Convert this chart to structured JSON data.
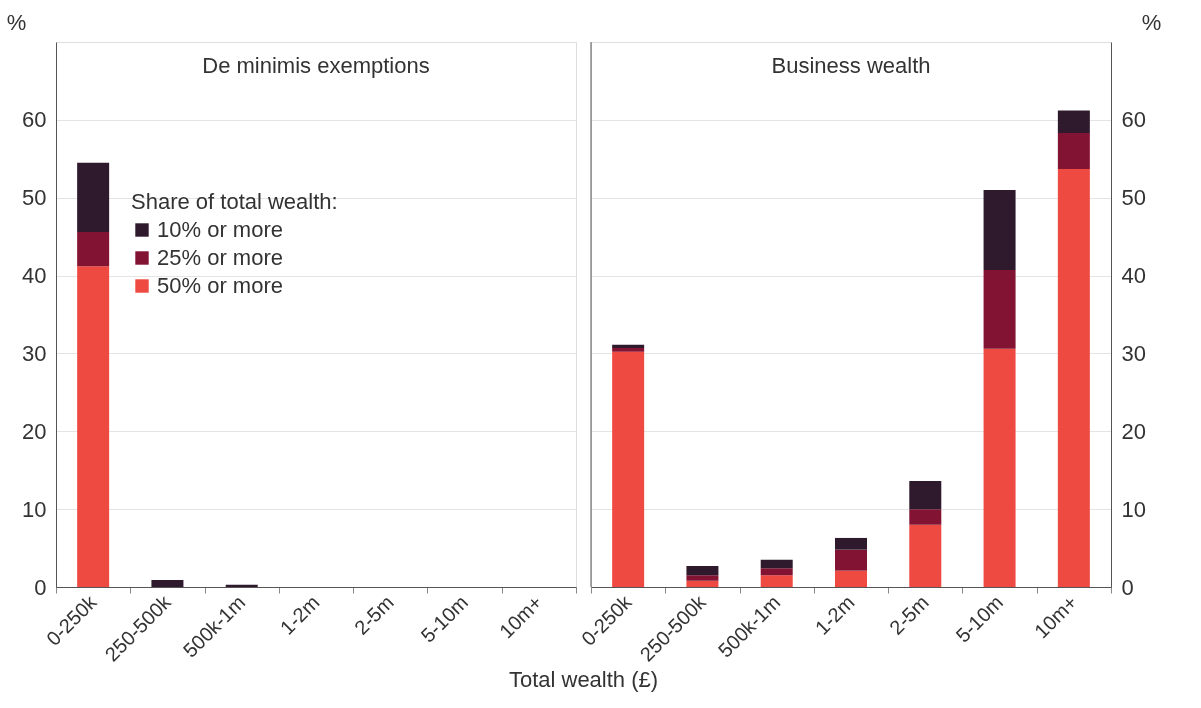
{
  "chart_data": [
    {
      "type": "bar",
      "title": "De minimis exemptions",
      "xlabel": "Total wealth (£)",
      "ylabel": "%",
      "legend_title": "Share of total wealth:",
      "legend": "top left",
      "grid": "y",
      "stacked": true,
      "categories": [
        "0-250k",
        "250-500k",
        "500k-1m",
        "1-2m",
        "2-5m",
        "5-10m",
        "10m+"
      ],
      "ylim": [
        0,
        70
      ],
      "yticks": [
        0,
        10,
        20,
        30,
        40,
        50,
        60
      ],
      "series": [
        {
          "name": "50% or more",
          "color": "#ef4a42",
          "values": [
            41.2,
            0,
            0,
            0,
            0,
            0,
            0
          ]
        },
        {
          "name": "25% or more",
          "color": "#831333",
          "values": [
            4.4,
            0,
            0,
            0,
            0,
            0,
            0
          ]
        },
        {
          "name": "10% or more",
          "color": "#2e1a2c",
          "values": [
            8.9,
            0.9,
            0.3,
            0,
            0,
            0,
            0
          ]
        }
      ]
    },
    {
      "type": "bar",
      "title": "Business wealth",
      "ylabel": "%",
      "legend": false,
      "grid": "y",
      "stacked": true,
      "categories": [
        "0-250k",
        "250-500k",
        "500k-1m",
        "1-2m",
        "2-5m",
        "5-10m",
        "10m+"
      ],
      "ylim": [
        0,
        70
      ],
      "yticks": [
        0,
        10,
        20,
        30,
        40,
        50,
        60
      ],
      "series": [
        {
          "color": "#ef4a42",
          "values": [
            30.2,
            0.8,
            1.5,
            2.1,
            8.0,
            30.6,
            53.7
          ]
        },
        {
          "color": "#831333",
          "values": [
            0.5,
            0.7,
            0.9,
            2.7,
            2.0,
            10.1,
            4.6
          ]
        },
        {
          "color": "#2e1a2c",
          "values": [
            0.4,
            1.2,
            1.1,
            1.5,
            3.6,
            10.3,
            2.9
          ]
        }
      ]
    }
  ]
}
